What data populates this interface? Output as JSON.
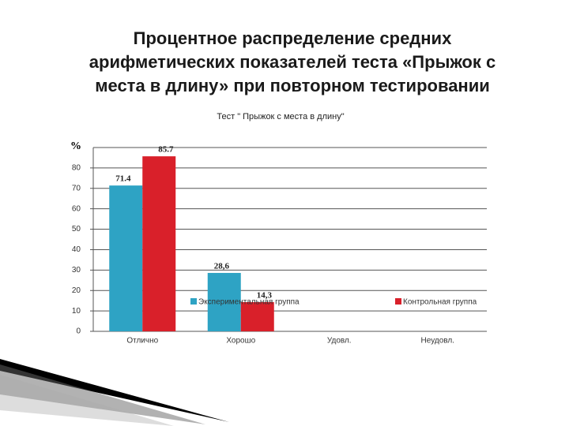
{
  "slide_title": [
    "Процентное распределение средних",
    "арифметических показателей теста «Прыжок с",
    "места в длину» при повторном тестировании"
  ],
  "chart_data": {
    "type": "bar",
    "title": "Тест \" Прыжок с места в длину\"",
    "y_label": "%",
    "categories": [
      "Отлично",
      "Хорошо",
      "Удовл.",
      "Неудовл."
    ],
    "series": [
      {
        "name": "Экспериментальная группа",
        "color": "#2ea3c4",
        "values": [
          71.4,
          28.6,
          null,
          null
        ],
        "value_labels": [
          "71.4",
          "28,6",
          null,
          null
        ]
      },
      {
        "name": "Контрольная группа",
        "color": "#d9202a",
        "values": [
          85.7,
          14.3,
          null,
          null
        ],
        "value_labels": [
          "85.7",
          "14,3",
          null,
          null
        ]
      }
    ],
    "ylim": [
      0,
      90
    ],
    "yticks": [
      0,
      10,
      20,
      30,
      40,
      50,
      60,
      70,
      80
    ],
    "grid": true,
    "legend": "inside-bottom"
  }
}
